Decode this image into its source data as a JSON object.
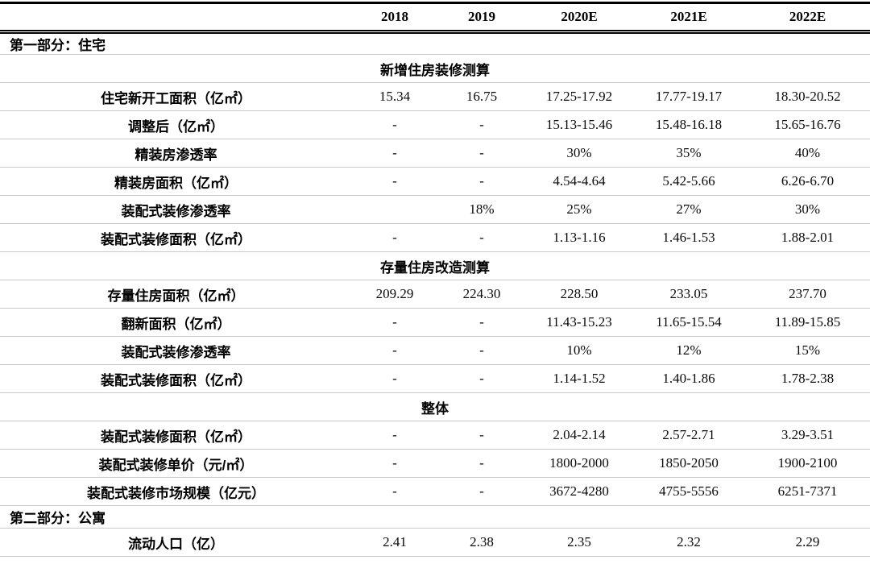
{
  "table": {
    "columns": [
      "",
      "2018",
      "2019",
      "2020E",
      "2021E",
      "2022E"
    ],
    "rows": [
      {
        "type": "part",
        "label": "第一部分：住宅"
      },
      {
        "type": "section",
        "label": "新增住房装修测算"
      },
      {
        "type": "data",
        "label": "住宅新开工面积（亿㎡）",
        "values": [
          "15.34",
          "16.75",
          "17.25-17.92",
          "17.77-19.17",
          "18.30-20.52"
        ]
      },
      {
        "type": "data",
        "label": "调整后（亿㎡）",
        "values": [
          "-",
          "-",
          "15.13-15.46",
          "15.48-16.18",
          "15.65-16.76"
        ]
      },
      {
        "type": "data",
        "label": "精装房渗透率",
        "values": [
          "-",
          "-",
          "30%",
          "35%",
          "40%"
        ]
      },
      {
        "type": "data",
        "label": "精装房面积（亿㎡）",
        "values": [
          "-",
          "-",
          "4.54-4.64",
          "5.42-5.66",
          "6.26-6.70"
        ]
      },
      {
        "type": "data",
        "label": "装配式装修渗透率",
        "values": [
          "",
          "18%",
          "25%",
          "27%",
          "30%"
        ]
      },
      {
        "type": "data",
        "label": "装配式装修面积（亿㎡）",
        "values": [
          "-",
          "-",
          "1.13-1.16",
          "1.46-1.53",
          "1.88-2.01"
        ]
      },
      {
        "type": "section",
        "label": "存量住房改造测算"
      },
      {
        "type": "data",
        "label": "存量住房面积（亿㎡）",
        "values": [
          "209.29",
          "224.30",
          "228.50",
          "233.05",
          "237.70"
        ]
      },
      {
        "type": "data",
        "label": "翻新面积（亿㎡）",
        "values": [
          "-",
          "-",
          "11.43-15.23",
          "11.65-15.54",
          "11.89-15.85"
        ]
      },
      {
        "type": "data",
        "label": "装配式装修渗透率",
        "values": [
          "-",
          "-",
          "10%",
          "12%",
          "15%"
        ]
      },
      {
        "type": "data",
        "label": "装配式装修面积（亿㎡）",
        "values": [
          "-",
          "-",
          "1.14-1.52",
          "1.40-1.86",
          "1.78-2.38"
        ]
      },
      {
        "type": "section",
        "label": "整体"
      },
      {
        "type": "data",
        "label": "装配式装修面积（亿㎡）",
        "values": [
          "-",
          "-",
          "2.04-2.14",
          "2.57-2.71",
          "3.29-3.51"
        ]
      },
      {
        "type": "data",
        "label": "装配式装修单价（元/㎡）",
        "values": [
          "-",
          "-",
          "1800-2000",
          "1850-2050",
          "1900-2100"
        ]
      },
      {
        "type": "data",
        "label": "装配式装修市场规模（亿元）",
        "values": [
          "-",
          "-",
          "3672-4280",
          "4755-5556",
          "6251-7371"
        ]
      },
      {
        "type": "part",
        "label": "第二部分：公寓"
      },
      {
        "type": "data",
        "label": "流动人口（亿）",
        "values": [
          "2.41",
          "2.38",
          "2.35",
          "2.32",
          "2.29"
        ]
      }
    ]
  },
  "chart_data": {
    "type": "table",
    "title": "",
    "columns": [
      "",
      "2018",
      "2019",
      "2020E",
      "2021E",
      "2022E"
    ],
    "rows": [
      [
        "第一部分：住宅",
        "",
        "",
        "",
        "",
        ""
      ],
      [
        "新增住房装修测算",
        "",
        "",
        "",
        "",
        ""
      ],
      [
        "住宅新开工面积（亿㎡）",
        "15.34",
        "16.75",
        "17.25-17.92",
        "17.77-19.17",
        "18.30-20.52"
      ],
      [
        "调整后（亿㎡）",
        "-",
        "-",
        "15.13-15.46",
        "15.48-16.18",
        "15.65-16.76"
      ],
      [
        "精装房渗透率",
        "-",
        "-",
        "30%",
        "35%",
        "40%"
      ],
      [
        "精装房面积（亿㎡）",
        "-",
        "-",
        "4.54-4.64",
        "5.42-5.66",
        "6.26-6.70"
      ],
      [
        "装配式装修渗透率",
        "",
        "18%",
        "25%",
        "27%",
        "30%"
      ],
      [
        "装配式装修面积（亿㎡）",
        "-",
        "-",
        "1.13-1.16",
        "1.46-1.53",
        "1.88-2.01"
      ],
      [
        "存量住房改造测算",
        "",
        "",
        "",
        "",
        ""
      ],
      [
        "存量住房面积（亿㎡）",
        "209.29",
        "224.30",
        "228.50",
        "233.05",
        "237.70"
      ],
      [
        "翻新面积（亿㎡）",
        "-",
        "-",
        "11.43-15.23",
        "11.65-15.54",
        "11.89-15.85"
      ],
      [
        "装配式装修渗透率",
        "-",
        "-",
        "10%",
        "12%",
        "15%"
      ],
      [
        "装配式装修面积（亿㎡）",
        "-",
        "-",
        "1.14-1.52",
        "1.40-1.86",
        "1.78-2.38"
      ],
      [
        "整体",
        "",
        "",
        "",
        "",
        ""
      ],
      [
        "装配式装修面积（亿㎡）",
        "-",
        "-",
        "2.04-2.14",
        "2.57-2.71",
        "3.29-3.51"
      ],
      [
        "装配式装修单价（元/㎡）",
        "-",
        "-",
        "1800-2000",
        "1850-2050",
        "1900-2100"
      ],
      [
        "装配式装修市场规模（亿元）",
        "-",
        "-",
        "3672-4280",
        "4755-5556",
        "6251-7371"
      ],
      [
        "第二部分：公寓",
        "",
        "",
        "",
        "",
        ""
      ],
      [
        "流动人口（亿）",
        "2.41",
        "2.38",
        "2.35",
        "2.32",
        "2.29"
      ]
    ]
  }
}
